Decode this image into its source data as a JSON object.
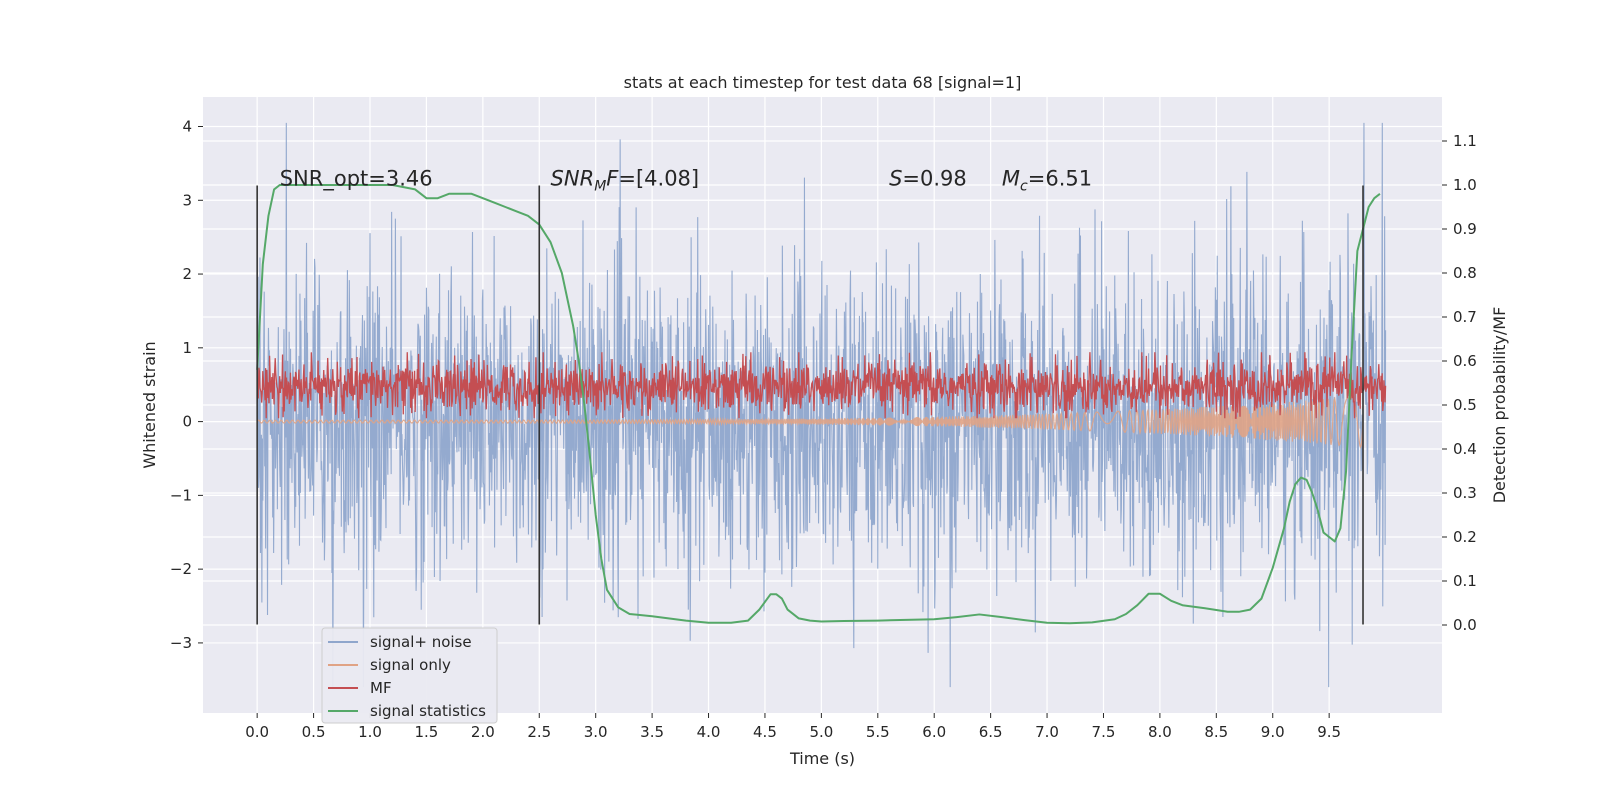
{
  "chart_data": {
    "type": "line",
    "title": "stats at each timestep for test data 68 [signal=1]",
    "xlabel": "Time (s)",
    "ylabel_left": "Whitened strain",
    "ylabel_right": "Detection probability/MF",
    "xlim": [
      -0.48,
      10.5
    ],
    "ylim_left": [
      -3.95,
      4.4
    ],
    "ylim_right": [
      -0.2,
      1.2
    ],
    "xticks": [
      "0.0",
      "0.5",
      "1.0",
      "1.5",
      "2.0",
      "2.5",
      "3.0",
      "3.5",
      "4.0",
      "4.5",
      "5.0",
      "5.5",
      "6.0",
      "6.5",
      "7.0",
      "7.5",
      "8.0",
      "8.5",
      "9.0",
      "9.5"
    ],
    "yticks_left": [
      "4",
      "3",
      "2",
      "1",
      "0",
      "−1",
      "−2",
      "−3"
    ],
    "yticks_right": [
      "1.1",
      "1.0",
      "0.9",
      "0.8",
      "0.7",
      "0.6",
      "0.5",
      "0.4",
      "0.3",
      "0.2",
      "0.1",
      "0.0"
    ],
    "grid": true,
    "legend_position": "lower-left",
    "annotations": [
      {
        "text": "SNR_opt=3.46",
        "x": 0.2,
        "y": 3.2
      },
      {
        "text_italic": "SNR",
        "subscript": "M",
        "text_italic2": "F",
        "rest": "=[4.08]",
        "x": 2.6,
        "y": 3.2
      },
      {
        "text_italic": "S",
        "rest": "=0.98",
        "x": 5.6,
        "y": 3.2
      },
      {
        "text_italic": "M",
        "subscript": "c",
        "rest": "=6.51",
        "x": 6.6,
        "y": 3.2
      }
    ],
    "vlines": [
      {
        "x": 0.0,
        "y_range": [
          -2.75,
          3.2
        ]
      },
      {
        "x": 2.5,
        "y_range": [
          -2.75,
          3.2
        ]
      },
      {
        "x": 9.8,
        "y_range": [
          -2.75,
          3.2
        ]
      }
    ],
    "series": [
      {
        "name": "signal+ noise",
        "color": "#8fa6cc",
        "axis": "left",
        "description_values": "dense noise, range about -3.6 to 4.05"
      },
      {
        "name": "signal only",
        "color": "#e0a385",
        "axis": "left",
        "description_values": "chirp, amplitude growing toward 9.8 s"
      },
      {
        "name": "MF",
        "color": "#c44e52",
        "axis": "right",
        "description_values": "matched-filter output between 0.47 and 0.62"
      },
      {
        "name": "signal statistics",
        "color": "#55a868",
        "axis": "right",
        "x": [
          0.0,
          0.05,
          0.1,
          0.15,
          0.2,
          0.3,
          0.5,
          0.8,
          1.0,
          1.2,
          1.4,
          1.5,
          1.6,
          1.7,
          1.8,
          1.9,
          2.0,
          2.1,
          2.2,
          2.3,
          2.4,
          2.5,
          2.6,
          2.7,
          2.8,
          2.85,
          2.9,
          2.95,
          3.0,
          3.05,
          3.1,
          3.2,
          3.3,
          3.5,
          3.8,
          4.0,
          4.2,
          4.35,
          4.45,
          4.55,
          4.6,
          4.65,
          4.7,
          4.8,
          4.9,
          5.0,
          5.2,
          5.5,
          5.8,
          6.0,
          6.2,
          6.4,
          6.6,
          6.8,
          7.0,
          7.2,
          7.4,
          7.6,
          7.7,
          7.8,
          7.9,
          8.0,
          8.1,
          8.2,
          8.4,
          8.6,
          8.7,
          8.8,
          8.9,
          9.0,
          9.1,
          9.15,
          9.2,
          9.25,
          9.3,
          9.35,
          9.4,
          9.45,
          9.5,
          9.55,
          9.6,
          9.65,
          9.7,
          9.75,
          9.8,
          9.85,
          9.9,
          9.95
        ],
        "y": [
          0.58,
          0.82,
          0.93,
          0.99,
          1.0,
          1.0,
          1.0,
          1.0,
          1.0,
          1.0,
          0.99,
          0.97,
          0.97,
          0.98,
          0.98,
          0.98,
          0.97,
          0.96,
          0.95,
          0.94,
          0.93,
          0.91,
          0.87,
          0.8,
          0.68,
          0.6,
          0.5,
          0.38,
          0.25,
          0.15,
          0.08,
          0.04,
          0.025,
          0.02,
          0.01,
          0.005,
          0.005,
          0.01,
          0.035,
          0.07,
          0.07,
          0.06,
          0.035,
          0.015,
          0.01,
          0.008,
          0.009,
          0.01,
          0.012,
          0.013,
          0.018,
          0.024,
          0.018,
          0.011,
          0.005,
          0.004,
          0.006,
          0.013,
          0.025,
          0.045,
          0.071,
          0.071,
          0.055,
          0.045,
          0.038,
          0.03,
          0.03,
          0.035,
          0.06,
          0.13,
          0.22,
          0.28,
          0.32,
          0.335,
          0.33,
          0.3,
          0.26,
          0.21,
          0.2,
          0.19,
          0.22,
          0.35,
          0.62,
          0.85,
          0.9,
          0.95,
          0.97,
          0.98
        ]
      }
    ]
  },
  "legend": {
    "items": [
      {
        "label": "signal+ noise",
        "color": "#8fa6cc"
      },
      {
        "label": "signal only",
        "color": "#e0a385"
      },
      {
        "label": "MF",
        "color": "#c44e52"
      },
      {
        "label": "signal statistics",
        "color": "#55a868"
      }
    ]
  },
  "colors": {
    "plot_bg": "#eaeaf2",
    "grid": "#ffffff",
    "text": "#262626",
    "vline": "#333333"
  }
}
